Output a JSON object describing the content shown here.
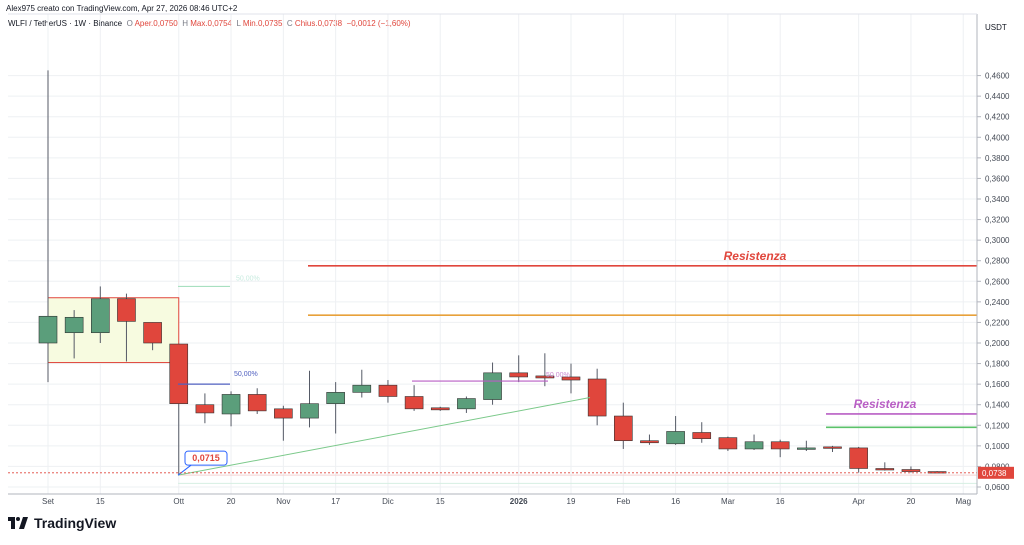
{
  "header": {
    "caption": "Alex975 creato con TradingView.com, Apr 27, 2026 08:46 UTC+2",
    "symbol": "WLFI / TetherUS · 1W · Binance",
    "open_label": "O",
    "open_text": "Aper.0,0750",
    "high_label": "H",
    "high_text": "Max.0,0754",
    "low_label": "L",
    "low_text": "Min.0,0735",
    "close_label": "C",
    "close_text": "Chius.0,0738",
    "change_text": "−0,0012 (−1,60%)"
  },
  "footer": {
    "brand": "TradingView"
  },
  "chart_data": {
    "type": "candlestick",
    "currency_label": "USDT",
    "ylim": [
      0.06,
      0.48
    ],
    "y_ticks": [
      "0,4600",
      "0,4400",
      "0,4200",
      "0,4000",
      "0,3800",
      "0,3600",
      "0,3400",
      "0,3200",
      "0,3000",
      "0,2800",
      "0,2600",
      "0,2400",
      "0,2200",
      "0,2000",
      "0,1800",
      "0,1600",
      "0,1400",
      "0,1200",
      "0,1000",
      "0,0800",
      "0,0600"
    ],
    "x_ticks": [
      "Set",
      "15",
      "Ott",
      "20",
      "Nov",
      "17",
      "Dic",
      "15",
      "2026",
      "19",
      "Feb",
      "16",
      "Mar",
      "16",
      "Apr",
      "20",
      "Mag"
    ],
    "last_price_label": "0,0738",
    "candles": [
      {
        "o": 0.2,
        "h": 0.465,
        "l": 0.162,
        "c": 0.226
      },
      {
        "o": 0.21,
        "h": 0.232,
        "l": 0.185,
        "c": 0.225
      },
      {
        "o": 0.21,
        "h": 0.255,
        "l": 0.2,
        "c": 0.243
      },
      {
        "o": 0.243,
        "h": 0.248,
        "l": 0.182,
        "c": 0.221
      },
      {
        "o": 0.22,
        "h": 0.22,
        "l": 0.193,
        "c": 0.2
      },
      {
        "o": 0.199,
        "h": 0.199,
        "l": 0.0715,
        "c": 0.141
      },
      {
        "o": 0.14,
        "h": 0.151,
        "l": 0.122,
        "c": 0.132
      },
      {
        "o": 0.131,
        "h": 0.153,
        "l": 0.119,
        "c": 0.15
      },
      {
        "o": 0.15,
        "h": 0.156,
        "l": 0.131,
        "c": 0.134
      },
      {
        "o": 0.136,
        "h": 0.139,
        "l": 0.105,
        "c": 0.127
      },
      {
        "o": 0.127,
        "h": 0.173,
        "l": 0.118,
        "c": 0.141
      },
      {
        "o": 0.141,
        "h": 0.162,
        "l": 0.112,
        "c": 0.152
      },
      {
        "o": 0.152,
        "h": 0.174,
        "l": 0.147,
        "c": 0.159
      },
      {
        "o": 0.159,
        "h": 0.164,
        "l": 0.142,
        "c": 0.148
      },
      {
        "o": 0.148,
        "h": 0.159,
        "l": 0.134,
        "c": 0.136
      },
      {
        "o": 0.137,
        "h": 0.138,
        "l": 0.134,
        "c": 0.135
      },
      {
        "o": 0.136,
        "h": 0.148,
        "l": 0.132,
        "c": 0.146
      },
      {
        "o": 0.145,
        "h": 0.181,
        "l": 0.14,
        "c": 0.171
      },
      {
        "o": 0.171,
        "h": 0.188,
        "l": 0.162,
        "c": 0.167
      },
      {
        "o": 0.168,
        "h": 0.19,
        "l": 0.158,
        "c": 0.166
      },
      {
        "o": 0.167,
        "h": 0.18,
        "l": 0.151,
        "c": 0.164
      },
      {
        "o": 0.165,
        "h": 0.175,
        "l": 0.12,
        "c": 0.129
      },
      {
        "o": 0.129,
        "h": 0.142,
        "l": 0.097,
        "c": 0.105
      },
      {
        "o": 0.105,
        "h": 0.111,
        "l": 0.101,
        "c": 0.103
      },
      {
        "o": 0.102,
        "h": 0.129,
        "l": 0.101,
        "c": 0.114
      },
      {
        "o": 0.113,
        "h": 0.123,
        "l": 0.103,
        "c": 0.107
      },
      {
        "o": 0.108,
        "h": 0.109,
        "l": 0.095,
        "c": 0.097
      },
      {
        "o": 0.097,
        "h": 0.111,
        "l": 0.096,
        "c": 0.104
      },
      {
        "o": 0.104,
        "h": 0.106,
        "l": 0.089,
        "c": 0.097
      },
      {
        "o": 0.097,
        "h": 0.105,
        "l": 0.095,
        "c": 0.098
      },
      {
        "o": 0.099,
        "h": 0.1,
        "l": 0.094,
        "c": 0.098
      },
      {
        "o": 0.098,
        "h": 0.099,
        "l": 0.074,
        "c": 0.078
      },
      {
        "o": 0.078,
        "h": 0.084,
        "l": 0.076,
        "c": 0.077
      },
      {
        "o": 0.077,
        "h": 0.08,
        "l": 0.074,
        "c": 0.075
      },
      {
        "o": 0.075,
        "h": 0.0754,
        "l": 0.0735,
        "c": 0.0738
      }
    ],
    "levels": [
      {
        "label": "Resistenza",
        "price": 0.275,
        "color": "#e0463c"
      },
      {
        "label": "",
        "price": 0.227,
        "color": "#e8a13a"
      },
      {
        "label": "Resistenza",
        "price": 0.131,
        "color": "#b85ec4"
      },
      {
        "label": "",
        "price": 0.118,
        "color": "#5bc26a"
      }
    ],
    "fib_labels": [
      "50,00%",
      "50,00%",
      "50,00%"
    ],
    "low_callout": "0,0715",
    "colors": {
      "up": "#5b9e7b",
      "down": "#e0463c",
      "wick": "#555a66",
      "grid": "#eef0f3",
      "text": "#131722",
      "axis_text": "#444a55"
    }
  }
}
